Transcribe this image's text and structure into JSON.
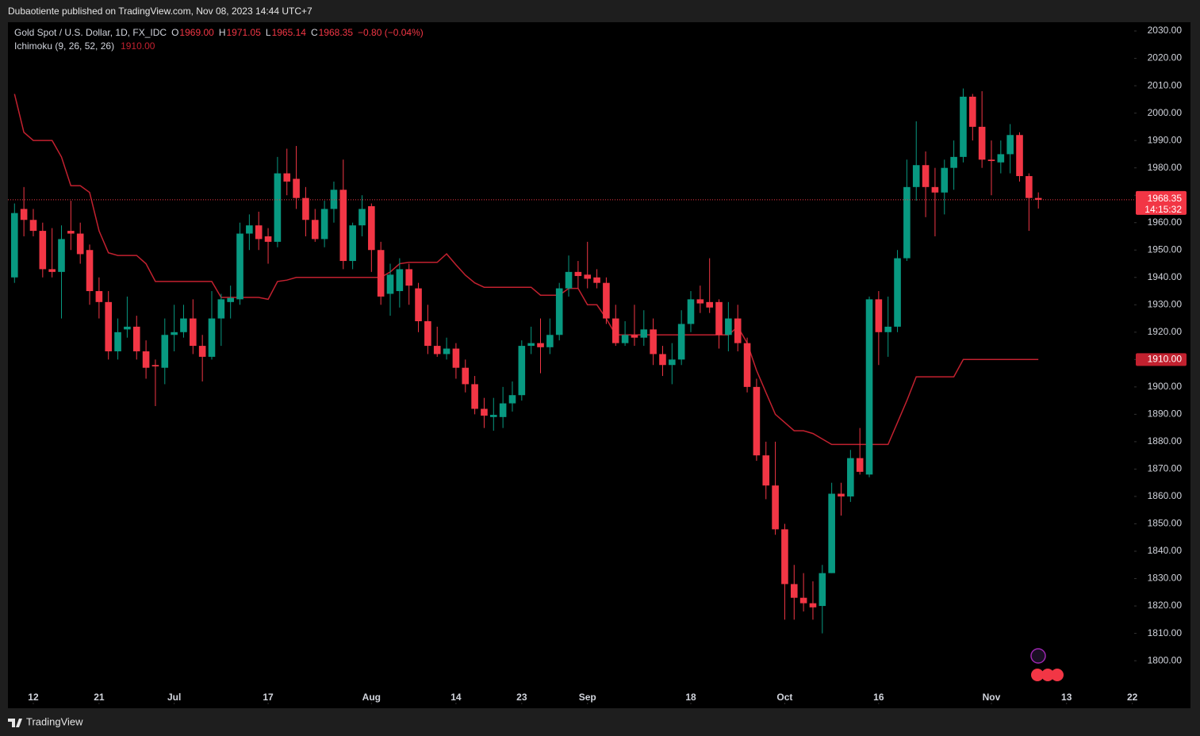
{
  "header": {
    "published": "Dubaotiente published on TradingView.com, Nov 08, 2023 14:44 UTC+7",
    "symbol": "Gold Spot / U.S. Dollar, 1D, FX_IDC",
    "ohlc": [
      {
        "key": "O",
        "value": "1969.00"
      },
      {
        "key": "H",
        "value": "1971.05"
      },
      {
        "key": "L",
        "value": "1965.14"
      },
      {
        "key": "C",
        "value": "1968.35"
      }
    ],
    "change": "−0.80 (−0.04%)"
  },
  "footer": {
    "brand": "TradingView"
  },
  "chart_data": {
    "type": "candlestick",
    "up_color": "#089981",
    "down_color": "#f23645",
    "open": [
      1940,
      1965,
      1961,
      1957,
      1943,
      1942,
      1957,
      1956,
      1950,
      1935,
      1931,
      1913,
      1921,
      1922,
      1913,
      1908,
      1907,
      1919,
      1920,
      1925,
      1915,
      1911,
      1925,
      1931,
      1932,
      1956,
      1959,
      1955,
      1953,
      1978,
      1976,
      1969,
      1961,
      1954,
      1965,
      1972,
      1946,
      1959,
      1966,
      1950,
      1934,
      1935,
      1943,
      1936,
      1924,
      1915,
      1912,
      1914,
      1907,
      1901,
      1892,
      1889,
      1889,
      1894,
      1897,
      1915,
      1916,
      1914.5,
      1919,
      1936,
      1942,
      1941,
      1940,
      1938,
      1925,
      1916,
      1919,
      1918,
      1921,
      1912,
      1908,
      1910,
      1923,
      1932,
      1931,
      1931,
      1919,
      1925,
      1916,
      1900,
      1875,
      1864,
      1848,
      1828,
      1823,
      1821,
      1820,
      1832,
      1861,
      1860,
      1874,
      1868,
      1932,
      1920,
      1922,
      1947,
      1973,
      1981,
      1973,
      1971,
      1980,
      1984,
      2006,
      1995,
      1983,
      1982,
      1985,
      1992,
      1977,
      1969.0
    ],
    "high": [
      1967,
      1973,
      1965,
      1960,
      1958,
      1959,
      1968,
      1960,
      1952,
      1940,
      1935,
      1925,
      1933,
      1926,
      1917,
      1910,
      1925,
      1930,
      1930,
      1932,
      1919,
      1935,
      1934,
      1937,
      1960,
      1963,
      1964,
      1958,
      1984,
      1987,
      1988,
      1973,
      1965,
      1968,
      1975,
      1983,
      1960,
      1970,
      1967,
      1953,
      1945,
      1947,
      1945,
      1938,
      1930,
      1922,
      1918,
      1916,
      1910,
      1904,
      1896,
      1896,
      1900,
      1902,
      1917,
      1922,
      1925,
      1925,
      1938,
      1948,
      1946,
      1953,
      1943,
      1940,
      1930,
      1924,
      1930,
      1928,
      1925,
      1915,
      1916,
      1928,
      1935,
      1937,
      1947,
      1932,
      1931,
      1930,
      1918,
      1903,
      1880,
      1880,
      1850,
      1835,
      1832,
      1829,
      1835,
      1865,
      1865,
      1877,
      1885,
      1933,
      1935,
      1933,
      1950,
      1983,
      1997,
      1986,
      1980,
      1983,
      1990,
      2009,
      2007,
      2008,
      1990,
      1990,
      1996,
      1993,
      1978,
      1971.05
    ],
    "low": [
      1938,
      1955,
      1955,
      1940,
      1940,
      1925,
      1950,
      1945,
      1930,
      1925,
      1910,
      1910,
      1918,
      1910,
      1903,
      1893,
      1901,
      1913,
      1918,
      1912,
      1902,
      1910,
      1915,
      1925,
      1930,
      1950,
      1950,
      1945,
      1951,
      1970,
      1965,
      1955,
      1953,
      1951,
      1960,
      1943,
      1943,
      1955,
      1942,
      1930,
      1926,
      1929,
      1930,
      1920,
      1912,
      1911,
      1910,
      1903,
      1898,
      1890,
      1885,
      1884,
      1885,
      1891,
      1895,
      1912,
      1905,
      1912,
      1917,
      1933,
      1936,
      1936,
      1936,
      1923,
      1915,
      1915,
      1915,
      1915,
      1908,
      1904,
      1901,
      1908,
      1920,
      1927,
      1927,
      1914,
      1913,
      1913,
      1898,
      1873,
      1859,
      1846,
      1815,
      1815,
      1818,
      1815,
      1810,
      1832,
      1853,
      1858,
      1868,
      1867,
      1908,
      1911,
      1920,
      1946,
      1968,
      1962,
      1955,
      1963,
      1972,
      1982,
      1990,
      1980,
      1970,
      1978,
      1978,
      1975,
      1957,
      1965.14
    ],
    "close": [
      1963.5,
      1961,
      1957,
      1943,
      1942,
      1954,
      1956,
      1948.5,
      1935,
      1931,
      1913,
      1920,
      1922,
      1913,
      1907,
      1907.5,
      1919,
      1920,
      1925,
      1915,
      1911,
      1925,
      1932,
      1932.5,
      1956,
      1959,
      1954,
      1953,
      1978,
      1975,
      1969,
      1961,
      1954,
      1965,
      1972,
      1946,
      1959,
      1965,
      1950,
      1933,
      1941,
      1943,
      1937,
      1924,
      1915,
      1912,
      1914,
      1907,
      1901,
      1892,
      1889.5,
      1889.8,
      1894,
      1897,
      1915,
      1916,
      1914.5,
      1919,
      1936,
      1942,
      1940.5,
      1939.5,
      1938,
      1925,
      1916,
      1919,
      1918,
      1921,
      1912,
      1908,
      1910,
      1923,
      1932,
      1930.5,
      1929,
      1919,
      1925,
      1916,
      1900,
      1875,
      1864,
      1848,
      1828,
      1823,
      1821,
      1819.5,
      1832,
      1861,
      1860,
      1874,
      1869,
      1932,
      1920,
      1922,
      1947,
      1973,
      1981,
      1973,
      1971,
      1980,
      1984,
      2006,
      1995,
      1983,
      1982.5,
      1985,
      1992,
      1977,
      1969,
      1968.35
    ],
    "last_price_countdown": "14:15:32",
    "lines": [
      {
        "name": "Ichimoku (9, 26, 52, 26)",
        "color": "#c2212f",
        "value_label": "1910.00",
        "values": [
          2007,
          1993,
          1990,
          1990,
          1990,
          1984,
          1973.5,
          1973.5,
          1971,
          1957,
          1949,
          1948,
          1948,
          1948,
          1945,
          1938.5,
          1938.5,
          1938.5,
          1938.5,
          1938.5,
          1938.5,
          1938.5,
          1932.7,
          1932.7,
          1932.7,
          1932.7,
          1932.7,
          1932,
          1938.5,
          1939,
          1940,
          1940,
          1940,
          1940,
          1940,
          1940,
          1940,
          1940,
          1940,
          1940,
          1942,
          1945,
          1945.5,
          1945.5,
          1945.5,
          1945.5,
          1948.6,
          1944.6,
          1940.8,
          1938,
          1936.4,
          1936.4,
          1936.4,
          1936.4,
          1936.4,
          1936.4,
          1933.5,
          1933.5,
          1933.5,
          1936,
          1936,
          1930,
          1930,
          1925,
          1919,
          1919,
          1919,
          1919,
          1919,
          1919,
          1919,
          1919,
          1919,
          1919,
          1919,
          1919,
          1919,
          1922,
          1916,
          1906,
          1898,
          1890,
          1887,
          1884,
          1884,
          1883,
          1881,
          1879,
          1879,
          1879,
          1879,
          1879,
          1879,
          1879,
          1887,
          1895,
          1903.7,
          1903.7,
          1903.7,
          1903.7,
          1903.7,
          1910,
          1910,
          1910,
          1910,
          1910,
          1910,
          1910,
          1910,
          1910
        ]
      }
    ],
    "xlim": [
      -0.7,
      119.2
    ],
    "xticks": [
      {
        "value": 2,
        "label": "12"
      },
      {
        "value": 9,
        "label": "21"
      },
      {
        "value": 17,
        "label": "Jul"
      },
      {
        "value": 27,
        "label": "17"
      },
      {
        "value": 38,
        "label": "Aug"
      },
      {
        "value": 47,
        "label": "14"
      },
      {
        "value": 54,
        "label": "23"
      },
      {
        "value": 61,
        "label": "Sep"
      },
      {
        "value": 72,
        "label": "18"
      },
      {
        "value": 82,
        "label": "Oct"
      },
      {
        "value": 92,
        "label": "16"
      },
      {
        "value": 104,
        "label": "Nov"
      },
      {
        "value": 112,
        "label": "13"
      },
      {
        "value": 119,
        "label": "22"
      }
    ],
    "ylim": [
      1784.1,
      2033.2
    ],
    "yticks": [
      {
        "value": 1800,
        "label": "1800.00"
      },
      {
        "value": 1810,
        "label": "1810.00"
      },
      {
        "value": 1820,
        "label": "1820.00"
      },
      {
        "value": 1830,
        "label": "1830.00"
      },
      {
        "value": 1840,
        "label": "1840.00"
      },
      {
        "value": 1850,
        "label": "1850.00"
      },
      {
        "value": 1860,
        "label": "1860.00"
      },
      {
        "value": 1870,
        "label": "1870.00"
      },
      {
        "value": 1880,
        "label": "1880.00"
      },
      {
        "value": 1890,
        "label": "1890.00"
      },
      {
        "value": 1900,
        "label": "1900.00"
      },
      {
        "value": 1910,
        "label": "1910.00"
      },
      {
        "value": 1920,
        "label": "1920.00"
      },
      {
        "value": 1930,
        "label": "1930.00"
      },
      {
        "value": 1940,
        "label": "1940.00"
      },
      {
        "value": 1950,
        "label": "1950.00"
      },
      {
        "value": 1960,
        "label": "1960.00"
      },
      {
        "value": 1970,
        "label": "1970.00"
      },
      {
        "value": 1980,
        "label": "1980.00"
      },
      {
        "value": 1990,
        "label": "1990.00"
      },
      {
        "value": 2000,
        "label": "2000.00"
      },
      {
        "value": 2010,
        "label": "2010.00"
      },
      {
        "value": 2020,
        "label": "2020.00"
      },
      {
        "value": 2030,
        "label": "2030.00"
      }
    ],
    "grid": false
  }
}
